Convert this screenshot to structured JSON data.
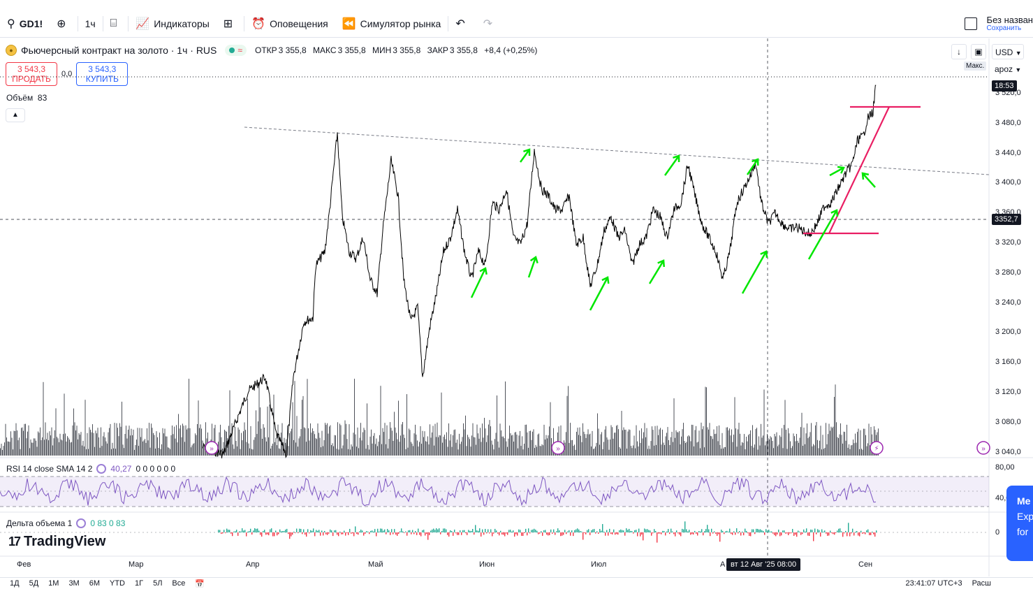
{
  "toolbar": {
    "symbol": "GD1!",
    "interval": "1ч",
    "indicators_label": "Индикаторы",
    "alerts_label": "Оповещения",
    "replay_label": "Симулятор рынка",
    "save_title": "Без назван",
    "save_sub": "Сохранить"
  },
  "legend": {
    "title": "Фьючерсный контракт на золото · 1ч · RUS",
    "open_k": "ОТКР",
    "open_v": "3 355,8",
    "high_k": "МАКС",
    "high_v": "3 355,8",
    "low_k": "МИН",
    "low_v": "3 355,8",
    "close_k": "ЗАКР",
    "close_v": "3 355,8",
    "change": "+8,4 (+0,25%)"
  },
  "trade": {
    "sell_price": "3 543,3",
    "sell_label": "ПРОДАТЬ",
    "spread": "0,0",
    "buy_price": "3 543,3",
    "buy_label": "КУПИТЬ"
  },
  "volume": {
    "label": "Объём",
    "value": "83"
  },
  "scale": {
    "currency": "USD",
    "mode": "apoz",
    "maks": "Макс.",
    "countdown": "18:53",
    "current_price": "3352,7",
    "ticks": [
      "3 520,0",
      "3 480,0",
      "3 440,0",
      "3 400,0",
      "3 360,0",
      "3 320,0",
      "3 280,0",
      "3 240,0",
      "3 200,0",
      "3 160,0",
      "3 120,0",
      "3 080,0",
      "3 040,0"
    ],
    "rsi_ticks": [
      "80,00",
      "40,00"
    ],
    "delta_tick": "0"
  },
  "rsi": {
    "label": "RSI 14 close SMA 14 2",
    "value": "40,27",
    "extra": "0 0 0 0 0 0"
  },
  "delta": {
    "label": "Дельта объема 1",
    "values": "0 83 0 83"
  },
  "logo": "TradingView",
  "xaxis": {
    "labels": [
      "Фев",
      "Мар",
      "Апр",
      "Май",
      "Июн",
      "Июл",
      "А",
      "Сен"
    ],
    "crosshair": "вт 12 Авг '25   08:00"
  },
  "bottom": {
    "ranges": [
      "1Д",
      "5Д",
      "1М",
      "3М",
      "6М",
      "YTD",
      "1Г",
      "5Л",
      "Все"
    ],
    "clock": "23:41:07 UTC+3",
    "tail": "Расш"
  },
  "promo": {
    "line1": "Me",
    "line2": "Exp",
    "line3": "for"
  }
}
